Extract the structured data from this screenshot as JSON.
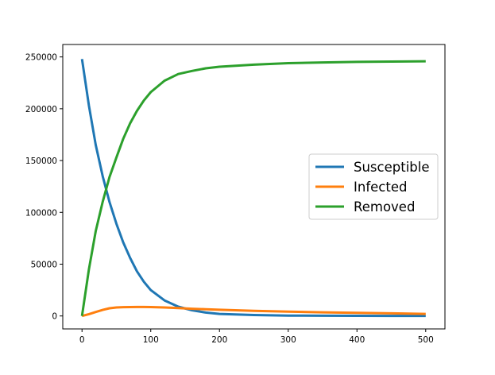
{
  "chart_data": {
    "type": "line",
    "title": "",
    "xlabel": "",
    "ylabel": "",
    "xlim": [
      -28,
      528
    ],
    "ylim": [
      -12500,
      262000
    ],
    "xticks": [
      0,
      100,
      200,
      300,
      400,
      500
    ],
    "yticks": [
      0,
      50000,
      100000,
      150000,
      200000,
      250000
    ],
    "xtick_labels": [
      "0",
      "100",
      "200",
      "300",
      "400",
      "500"
    ],
    "ytick_labels": [
      "0",
      "50000",
      "100000",
      "150000",
      "200000",
      "250000"
    ],
    "grid": false,
    "legend_position": "center-right",
    "series": [
      {
        "name": "Susceptible",
        "color": "#1f77b4",
        "x": [
          0,
          10,
          20,
          30,
          40,
          50,
          60,
          70,
          80,
          90,
          100,
          120,
          140,
          160,
          180,
          200,
          250,
          300,
          350,
          400,
          450,
          500
        ],
        "y": [
          248000,
          203000,
          165000,
          135000,
          110000,
          89000,
          71000,
          56000,
          43000,
          33000,
          25000,
          15000,
          9000,
          5500,
          3300,
          2000,
          900,
          400,
          200,
          120,
          80,
          60
        ]
      },
      {
        "name": "Infected",
        "color": "#ff7f0e",
        "x": [
          0,
          10,
          20,
          30,
          40,
          50,
          60,
          70,
          80,
          90,
          100,
          120,
          140,
          160,
          180,
          200,
          250,
          300,
          350,
          400,
          450,
          500
        ],
        "y": [
          0,
          1800,
          3800,
          5800,
          7400,
          8200,
          8500,
          8600,
          8700,
          8700,
          8600,
          8200,
          7700,
          7000,
          6500,
          6000,
          5000,
          4200,
          3500,
          3000,
          2500,
          2000
        ]
      },
      {
        "name": "Removed",
        "color": "#2ca02c",
        "x": [
          0,
          10,
          20,
          30,
          40,
          50,
          60,
          70,
          80,
          90,
          100,
          120,
          140,
          160,
          180,
          200,
          250,
          300,
          350,
          400,
          450,
          500
        ],
        "y": [
          0,
          45000,
          82000,
          110000,
          134000,
          153000,
          171000,
          186000,
          198000,
          208000,
          216000,
          227000,
          233500,
          236500,
          239000,
          240500,
          242500,
          244000,
          244700,
          245200,
          245500,
          245800
        ]
      }
    ]
  }
}
